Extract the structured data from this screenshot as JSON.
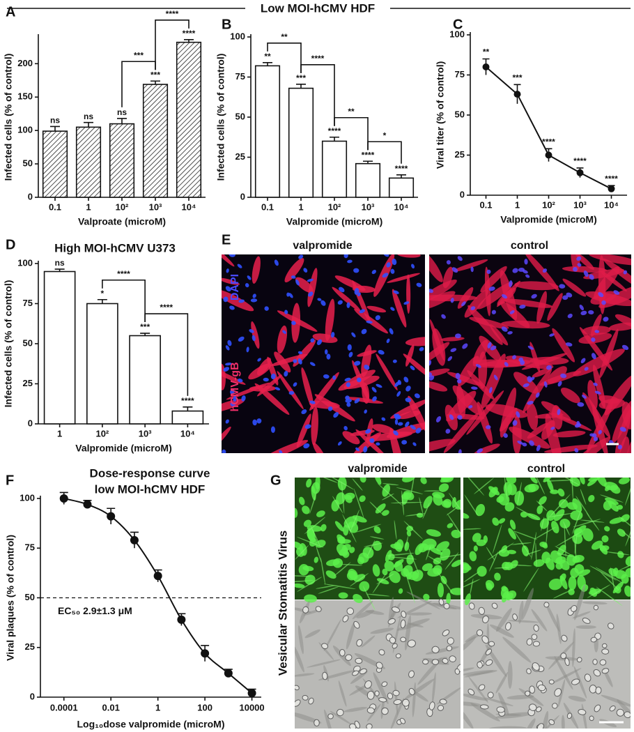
{
  "header": "Low MOI-hCMV HDF",
  "chart_data": [
    {
      "panel": "A",
      "type": "bar",
      "categories": [
        "0.1",
        "1",
        "10²",
        "10³",
        "10⁴"
      ],
      "values": [
        99,
        105,
        110,
        169,
        232
      ],
      "errors": [
        7,
        7,
        8,
        5,
        4
      ],
      "labels": [
        "ns",
        "ns",
        "ns",
        "***",
        "****"
      ],
      "brackets": [
        {
          "from": 2,
          "to": 3,
          "label": "***"
        },
        {
          "from": 3,
          "to": 4,
          "label": "****"
        }
      ],
      "ylim": [
        0,
        240
      ],
      "yticks": [
        0,
        50,
        100,
        150,
        200
      ],
      "ylabel": "Infected cells (% of control)",
      "xlabel": "Valproate (microM)",
      "color": "#ffffff",
      "hatch": true
    },
    {
      "panel": "B",
      "type": "bar",
      "categories": [
        "0.1",
        "1",
        "10²",
        "10³",
        "10⁴"
      ],
      "values": [
        82,
        68,
        35,
        21,
        12
      ],
      "errors": [
        2,
        2.5,
        2.5,
        1.5,
        2
      ],
      "labels": [
        "**",
        "***",
        "****",
        "****",
        "****"
      ],
      "brackets": [
        {
          "from": 0,
          "to": 1,
          "label": "**"
        },
        {
          "from": 1,
          "to": 2,
          "label": "****"
        },
        {
          "from": 2,
          "to": 3,
          "label": "**"
        },
        {
          "from": 3,
          "to": 4,
          "label": "*"
        }
      ],
      "ylim": [
        0,
        100
      ],
      "yticks": [
        0,
        25,
        50,
        75,
        100
      ],
      "ylabel": "Infected cells (% of control)",
      "xlabel": "Valpromide (microM)",
      "color": "#ffffff",
      "hatch": false
    },
    {
      "panel": "C",
      "type": "line",
      "categories": [
        "0.1",
        "1",
        "10²",
        "10³",
        "10⁴"
      ],
      "values": [
        80,
        63,
        25,
        14,
        4
      ],
      "errors": [
        5,
        6,
        4,
        3,
        2
      ],
      "labels": [
        "**",
        "***",
        "****",
        "****",
        "****"
      ],
      "ylim": [
        0,
        100
      ],
      "yticks": [
        0,
        25,
        50,
        75,
        100
      ],
      "ylabel": "Viral titer (% of control)",
      "xlabel": "Valpromide (microM)",
      "color": "#111111"
    },
    {
      "panel": "D",
      "type": "bar",
      "title": "High MOI-hCMV U373",
      "categories": [
        "1",
        "10²",
        "10³",
        "10⁴"
      ],
      "values": [
        95,
        75,
        55,
        8
      ],
      "errors": [
        1.5,
        2.5,
        1.5,
        2.5
      ],
      "labels": [
        "ns",
        "*",
        "***",
        "****"
      ],
      "brackets": [
        {
          "from": 1,
          "to": 2,
          "label": "****"
        },
        {
          "from": 2,
          "to": 3,
          "label": "****"
        }
      ],
      "ylim": [
        0,
        100
      ],
      "yticks": [
        0,
        25,
        50,
        75,
        100
      ],
      "ylabel": "Infected cells (% of control)",
      "xlabel": "Valpromide (microM)",
      "color": "#ffffff",
      "hatch": false
    },
    {
      "panel": "F",
      "type": "scatter",
      "title": [
        "Dose-response curve",
        "low MOI-hCMV HDF"
      ],
      "x": [
        0.0001,
        0.001,
        0.01,
        0.1,
        1,
        10,
        100,
        1000,
        10000
      ],
      "values": [
        100,
        97,
        91,
        79,
        61,
        39,
        22,
        12,
        2
      ],
      "errors": [
        3,
        2,
        4,
        4,
        3,
        3,
        4,
        2,
        2
      ],
      "log_x": true,
      "fit_line": true,
      "reference_line": 50,
      "annotation": "EC₅₀ 2.9±1.3 μM",
      "xlim": [
        1e-05,
        25000
      ],
      "xticks": [
        0.0001,
        0.01,
        1,
        100,
        10000
      ],
      "ylim": [
        0,
        100
      ],
      "yticks": [
        0,
        25,
        50,
        75,
        100
      ],
      "ylabel": "Viral plaques (% of control)",
      "xlabel": "Log₁₀dose valpromide (microM)",
      "color": "#111111"
    }
  ],
  "images": {
    "E": {
      "panel": "E",
      "columns": [
        "valpromide",
        "control"
      ],
      "row_labels": [
        "DAPI",
        "hCMV-gB"
      ]
    },
    "G": {
      "panel": "G",
      "columns": [
        "valpromide",
        "control"
      ],
      "row_label": "Vesicular Stomatitis Virus"
    }
  }
}
